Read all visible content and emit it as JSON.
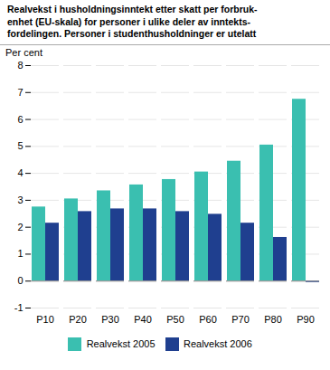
{
  "chart_data": {
    "type": "bar",
    "title": "Realvekst i husholdningsinntekt etter skatt per forbruk-\nenhet (EU-skala) for personer i ulike deler av inntekts-\nfordelingen. Personer i studenthusholdninger er utelatt",
    "ylabel": "Per cent",
    "categories": [
      "P10",
      "P20",
      "P30",
      "P40",
      "P50",
      "P60",
      "P70",
      "P80",
      "P90"
    ],
    "series": [
      {
        "name": "Realvekst 2005",
        "color": "#3abfb0",
        "values": [
          2.75,
          3.05,
          3.35,
          3.57,
          3.77,
          4.05,
          4.45,
          5.05,
          6.75
        ]
      },
      {
        "name": "Realvekst 2006",
        "color": "#1f3f8f",
        "values": [
          2.15,
          2.58,
          2.68,
          2.68,
          2.58,
          2.48,
          2.15,
          1.62,
          -0.05
        ]
      }
    ],
    "ylim": [
      -1,
      8
    ],
    "yticks": [
      -1,
      0,
      1,
      2,
      3,
      4,
      5,
      6,
      7,
      8
    ],
    "grid": true,
    "legend": "bottom"
  }
}
